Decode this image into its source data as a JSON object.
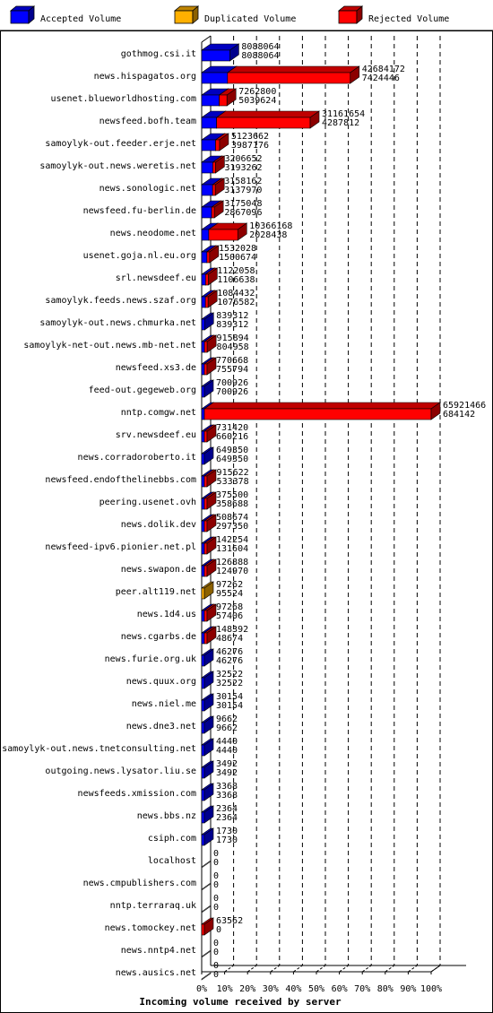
{
  "legend": [
    {
      "label": "Accepted Volume",
      "color": "#0000ff"
    },
    {
      "label": "Duplicated Volume",
      "color": "#ffb000"
    },
    {
      "label": "Rejected Volume",
      "color": "#ff0000"
    }
  ],
  "chart_data": {
    "type": "bar",
    "orientation": "horizontal",
    "xlabel": "Incoming volume received by server",
    "xticks": [
      "0%",
      "10%",
      "20%",
      "30%",
      "40%",
      "50%",
      "60%",
      "70%",
      "80%",
      "90%",
      "100%"
    ],
    "xlim": [
      0,
      100
    ],
    "grid": true,
    "legend_position": "top",
    "series_names": [
      "total",
      "accepted"
    ],
    "rows": [
      {
        "server": "gothmog.csi.it",
        "total": 8088064,
        "accepted": 8088064,
        "kind": "accepted"
      },
      {
        "server": "news.hispagatos.org",
        "total": 42684172,
        "accepted": 7424446,
        "kind": "rejected"
      },
      {
        "server": "usenet.blueworldhosting.com",
        "total": 7262800,
        "accepted": 5039624,
        "kind": "rejected"
      },
      {
        "server": "newsfeed.bofh.team",
        "total": 31161654,
        "accepted": 4287812,
        "kind": "rejected"
      },
      {
        "server": "samoylyk-out.feeder.erje.net",
        "total": 5123662,
        "accepted": 3987176,
        "kind": "rejected"
      },
      {
        "server": "samoylyk-out.news.weretis.net",
        "total": 3206652,
        "accepted": 3193262,
        "kind": "rejected"
      },
      {
        "server": "news.sonologic.net",
        "total": 3158162,
        "accepted": 3137970,
        "kind": "rejected"
      },
      {
        "server": "newsfeed.fu-berlin.de",
        "total": 3175048,
        "accepted": 2867096,
        "kind": "rejected"
      },
      {
        "server": "news.neodome.net",
        "total": 10366168,
        "accepted": 2028438,
        "kind": "rejected"
      },
      {
        "server": "usenet.goja.nl.eu.org",
        "total": 1532028,
        "accepted": 1500674,
        "kind": "rejected"
      },
      {
        "server": "srl.newsdeef.eu",
        "total": 1122058,
        "accepted": 1106638,
        "kind": "rejected"
      },
      {
        "server": "samoylyk.feeds.news.szaf.org",
        "total": 1084432,
        "accepted": 1076582,
        "kind": "rejected"
      },
      {
        "server": "samoylyk-out.news.chmurka.net",
        "total": 839312,
        "accepted": 839312,
        "kind": "accepted"
      },
      {
        "server": "samoylyk-net-out.news.mb-net.net",
        "total": 915894,
        "accepted": 804958,
        "kind": "rejected"
      },
      {
        "server": "newsfeed.xs3.de",
        "total": 770668,
        "accepted": 755794,
        "kind": "rejected"
      },
      {
        "server": "feed-out.gegeweb.org",
        "total": 700926,
        "accepted": 700926,
        "kind": "accepted"
      },
      {
        "server": "nntp.comgw.net",
        "total": 65921466,
        "accepted": 684142,
        "kind": "rejected"
      },
      {
        "server": "srv.newsdeef.eu",
        "total": 731420,
        "accepted": 660216,
        "kind": "rejected"
      },
      {
        "server": "news.corradoroberto.it",
        "total": 649350,
        "accepted": 649350,
        "kind": "accepted"
      },
      {
        "server": "newsfeed.endofthelinebbs.com",
        "total": 915622,
        "accepted": 533378,
        "kind": "rejected"
      },
      {
        "server": "peering.usenet.ovh",
        "total": 375500,
        "accepted": 358688,
        "kind": "rejected"
      },
      {
        "server": "news.dolik.dev",
        "total": 508674,
        "accepted": 297350,
        "kind": "rejected"
      },
      {
        "server": "newsfeed-ipv6.pionier.net.pl",
        "total": 142254,
        "accepted": 131604,
        "kind": "rejected"
      },
      {
        "server": "news.swapon.de",
        "total": 126888,
        "accepted": 124970,
        "kind": "rejected"
      },
      {
        "server": "peer.alt119.net",
        "total": 97262,
        "accepted": 95524,
        "kind": "duplicated"
      },
      {
        "server": "news.1d4.us",
        "total": 97268,
        "accepted": 57406,
        "kind": "rejected"
      },
      {
        "server": "news.cgarbs.de",
        "total": 148392,
        "accepted": 48674,
        "kind": "rejected"
      },
      {
        "server": "news.furie.org.uk",
        "total": 46276,
        "accepted": 46276,
        "kind": "accepted"
      },
      {
        "server": "news.quux.org",
        "total": 32522,
        "accepted": 32522,
        "kind": "accepted"
      },
      {
        "server": "news.niel.me",
        "total": 30154,
        "accepted": 30154,
        "kind": "accepted"
      },
      {
        "server": "news.dne3.net",
        "total": 9662,
        "accepted": 9662,
        "kind": "accepted"
      },
      {
        "server": "samoylyk-out.news.tnetconsulting.net",
        "total": 4440,
        "accepted": 4440,
        "kind": "accepted"
      },
      {
        "server": "outgoing.news.lysator.liu.se",
        "total": 3492,
        "accepted": 3492,
        "kind": "accepted"
      },
      {
        "server": "newsfeeds.xmission.com",
        "total": 3368,
        "accepted": 3368,
        "kind": "accepted"
      },
      {
        "server": "news.bbs.nz",
        "total": 2364,
        "accepted": 2364,
        "kind": "accepted"
      },
      {
        "server": "csiph.com",
        "total": 1730,
        "accepted": 1730,
        "kind": "accepted"
      },
      {
        "server": "localhost",
        "total": 0,
        "accepted": 0,
        "kind": "none"
      },
      {
        "server": "news.cmpublishers.com",
        "total": 0,
        "accepted": 0,
        "kind": "none"
      },
      {
        "server": "nntp.terraraq.uk",
        "total": 0,
        "accepted": 0,
        "kind": "none"
      },
      {
        "server": "news.tomockey.net",
        "total": 63562,
        "accepted": 0,
        "kind": "rejected"
      },
      {
        "server": "news.nntp4.net",
        "total": 0,
        "accepted": 0,
        "kind": "none"
      },
      {
        "server": "news.ausics.net",
        "total": 0,
        "accepted": 0,
        "kind": "none"
      }
    ]
  }
}
